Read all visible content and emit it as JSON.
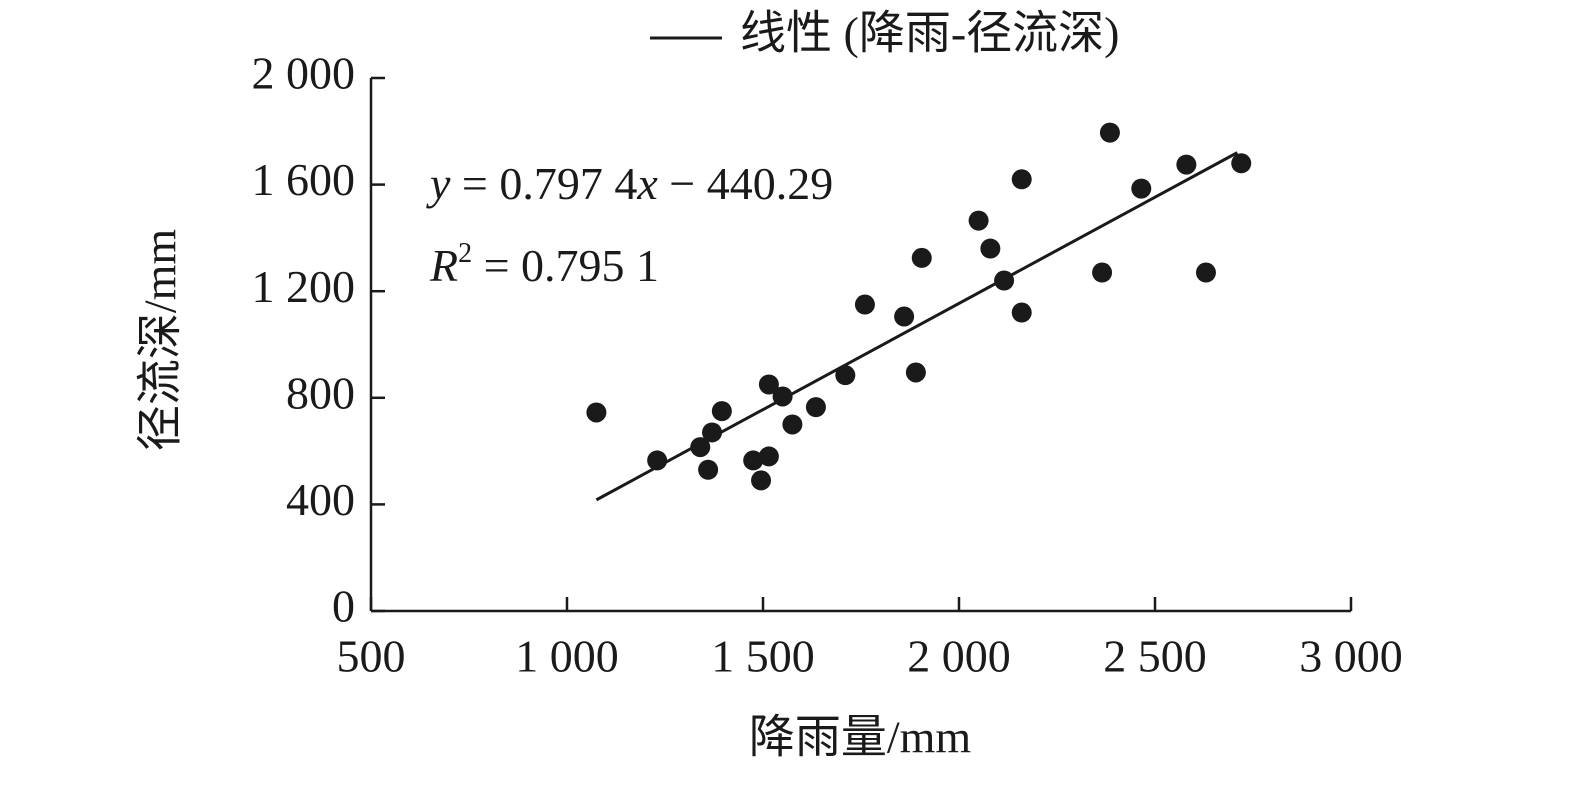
{
  "chart_data": {
    "type": "scatter",
    "x_label": "降雨量/mm",
    "y_label": "径流深/mm",
    "xlim": [
      500,
      3000
    ],
    "xticks": [
      500,
      {
        "value": 1000,
        "label": "1 000"
      },
      {
        "value": 1500,
        "label": "1 500"
      },
      {
        "value": 2000,
        "label": "2 000"
      },
      {
        "value": 2500,
        "label": "2 500"
      },
      {
        "value": 3000,
        "label": "3 000"
      }
    ],
    "ylim": [
      0,
      2000
    ],
    "yticks": [
      0,
      400,
      800,
      {
        "value": 1200,
        "label": "1 200"
      },
      {
        "value": 1600,
        "label": "1 600"
      },
      {
        "value": 2000,
        "label": "2 000"
      }
    ],
    "grid": false,
    "legend": "top",
    "series": [
      {
        "color": "#1a1a1a",
        "type": "scatter",
        "x": [
          1075,
          1230,
          1340,
          1370,
          1360,
          1395,
          1475,
          1495,
          1515,
          1515,
          1550,
          1575,
          1635,
          1710,
          1760,
          1860,
          1890,
          1905,
          2050,
          2080,
          2115,
          2160,
          2160,
          2365,
          2385,
          2465,
          2580,
          2630,
          2720
        ],
        "values": [
          745,
          565,
          615,
          670,
          530,
          750,
          565,
          490,
          580,
          850,
          805,
          700,
          765,
          885,
          1150,
          1105,
          895,
          1325,
          1465,
          1360,
          1240,
          1620,
          1120,
          1270,
          1795,
          1585,
          1675,
          1270,
          1680
        ]
      },
      {
        "name": "线性 (降雨-径流深)",
        "color": "#1a1a1a",
        "type": "line",
        "x": [
          1075,
          2710
        ],
        "values": [
          417,
          1720
        ]
      }
    ],
    "equation": [
      "y",
      " = 0.797 4",
      "x",
      " − 440.29"
    ],
    "r_squared": [
      "R",
      "2",
      " = 0.795 1"
    ]
  }
}
